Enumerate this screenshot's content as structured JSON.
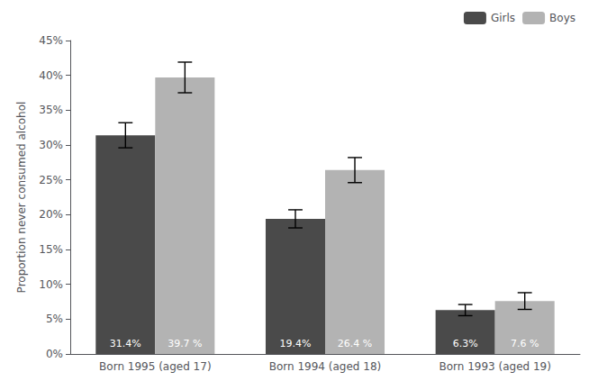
{
  "chart_data": {
    "type": "bar",
    "categories": [
      "Born 1995 (aged 17)",
      "Born 1994 (aged 18)",
      "Born 1993 (aged 19)"
    ],
    "series": [
      {
        "name": "Girls",
        "color": "#4a4a4a",
        "values": [
          31.4,
          19.4,
          6.3
        ],
        "errors": [
          1.8,
          1.3,
          0.8
        ],
        "value_labels": [
          "31.4%",
          "19.4%",
          "6.3%"
        ]
      },
      {
        "name": "Boys",
        "color": "#b3b3b3",
        "values": [
          39.7,
          26.4,
          7.6
        ],
        "errors": [
          2.2,
          1.8,
          1.2
        ],
        "value_labels": [
          "39.7 %",
          "26.4 %",
          "7.6 %"
        ]
      }
    ],
    "ylabel": "Proportion never consumed alcohol",
    "ylim": [
      0,
      45
    ],
    "yticks": [
      {
        "value": 0,
        "label": "0%"
      },
      {
        "value": 5,
        "label": "5%"
      },
      {
        "value": 10,
        "label": "10%"
      },
      {
        "value": 15,
        "label": "15%"
      },
      {
        "value": 20,
        "label": "20%"
      },
      {
        "value": 25,
        "label": "25%"
      },
      {
        "value": 30,
        "label": "30%"
      },
      {
        "value": 35,
        "label": "35%"
      },
      {
        "value": 40,
        "label": "40%"
      },
      {
        "value": 45,
        "label": "45%"
      }
    ],
    "grid": false,
    "legend": "upper right",
    "data_labels": true
  }
}
